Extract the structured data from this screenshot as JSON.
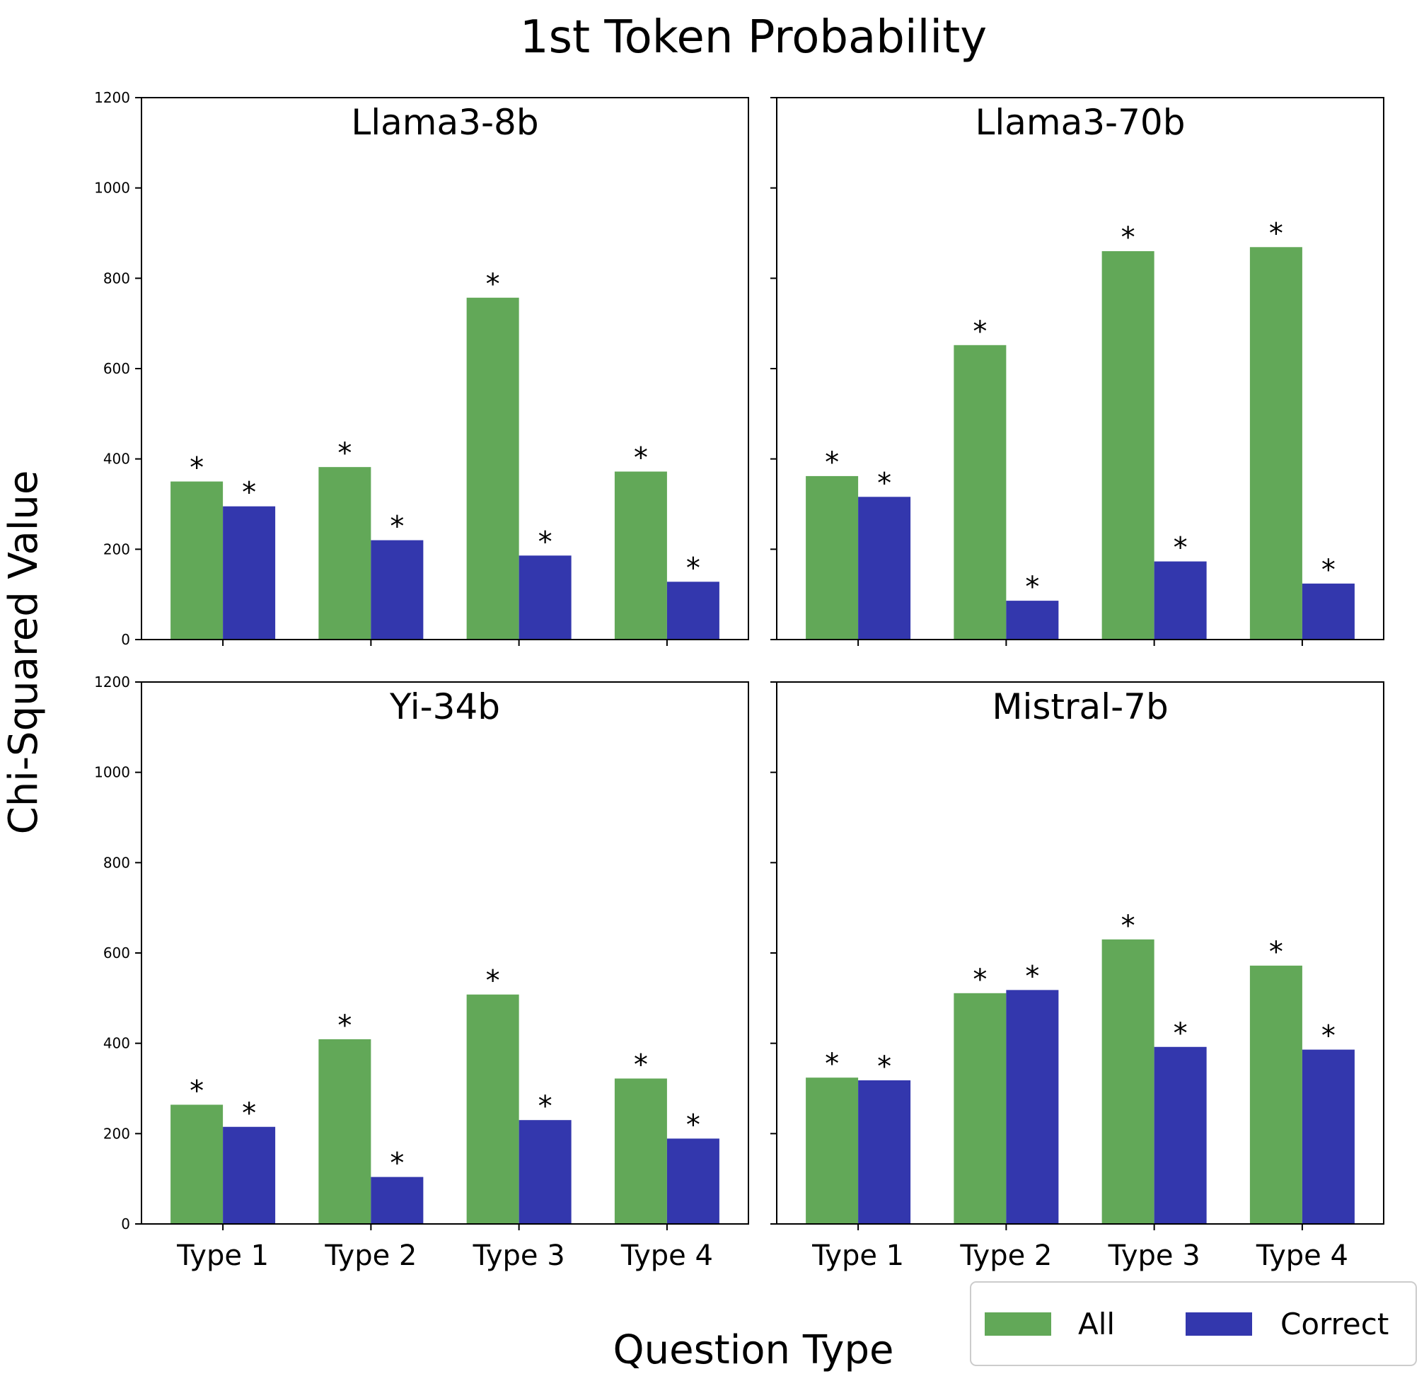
{
  "figure": {
    "title": "1st Token Probability",
    "ylabel": "Chi-Squared Value",
    "xlabel": "Question Type"
  },
  "legend": {
    "placement": "bottom-right",
    "items": [
      {
        "label": "All",
        "color": "#62a858"
      },
      {
        "label": "Correct",
        "color": "#3337ad"
      }
    ]
  },
  "chart_data": [
    {
      "type": "bar",
      "title": "Llama3-8b",
      "categories": [
        "Type 1",
        "Type 2",
        "Type 3",
        "Type 4"
      ],
      "ylim": [
        0,
        1200
      ],
      "yticks": [
        "0",
        "200",
        "400",
        "600",
        "800",
        "1000",
        "1200"
      ],
      "series": [
        {
          "name": "All",
          "values": [
            350,
            382,
            757,
            372
          ]
        },
        {
          "name": "Correct",
          "values": [
            295,
            220,
            186,
            128
          ]
        }
      ],
      "significance_marker": "*"
    },
    {
      "type": "bar",
      "title": "Llama3-70b",
      "categories": [
        "Type 1",
        "Type 2",
        "Type 3",
        "Type 4"
      ],
      "ylim": [
        0,
        1200
      ],
      "yticks": [
        "0",
        "200",
        "400",
        "600",
        "800",
        "1000",
        "1200"
      ],
      "series": [
        {
          "name": "All",
          "values": [
            362,
            652,
            860,
            869
          ]
        },
        {
          "name": "Correct",
          "values": [
            316,
            86,
            173,
            124
          ]
        }
      ],
      "significance_marker": "*"
    },
    {
      "type": "bar",
      "title": "Yi-34b",
      "categories": [
        "Type 1",
        "Type 2",
        "Type 3",
        "Type 4"
      ],
      "ylim": [
        0,
        1200
      ],
      "yticks": [
        "0",
        "200",
        "400",
        "600",
        "800",
        "1000",
        "1200"
      ],
      "series": [
        {
          "name": "All",
          "values": [
            264,
            409,
            508,
            322
          ]
        },
        {
          "name": "Correct",
          "values": [
            215,
            104,
            230,
            189
          ]
        }
      ],
      "significance_marker": "*"
    },
    {
      "type": "bar",
      "title": "Mistral-7b",
      "categories": [
        "Type 1",
        "Type 2",
        "Type 3",
        "Type 4"
      ],
      "ylim": [
        0,
        1200
      ],
      "yticks": [
        "0",
        "200",
        "400",
        "600",
        "800",
        "1000",
        "1200"
      ],
      "series": [
        {
          "name": "All",
          "values": [
            324,
            511,
            630,
            572
          ]
        },
        {
          "name": "Correct",
          "values": [
            318,
            518,
            392,
            386
          ]
        }
      ],
      "significance_marker": "*"
    }
  ]
}
